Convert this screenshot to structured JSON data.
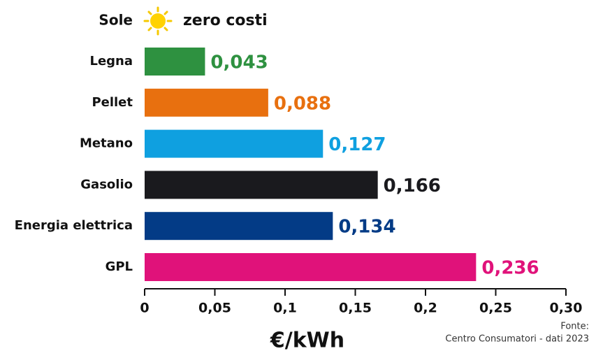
{
  "chart_data": {
    "type": "hbar",
    "highlight": {
      "category": "Sole",
      "label": "zero costi"
    },
    "categories": [
      "Legna",
      "Pellet",
      "Metano",
      "Gasolio",
      "Energia elettrica",
      "GPL"
    ],
    "values": [
      0.043,
      0.088,
      0.127,
      0.166,
      0.134,
      0.236
    ],
    "value_labels": [
      "0,043",
      "0,088",
      "0,127",
      "0,166",
      "0,134",
      "0,236"
    ],
    "colors": [
      "#2e9140",
      "#e8700f",
      "#0fa0e0",
      "#1a1a1e",
      "#033b86",
      "#e0127a"
    ],
    "xlim": [
      0,
      0.3
    ],
    "xticks": [
      0,
      {
        "value": 0.05,
        "label": "0,05"
      },
      {
        "value": 0.1,
        "label": "0,1"
      },
      {
        "value": 0.15,
        "label": "0,15"
      },
      {
        "value": 0.2,
        "label": "0,2"
      },
      {
        "value": 0.25,
        "label": "0,25"
      },
      {
        "value": 0.3,
        "label": "0,30"
      }
    ],
    "x_label": "€/kWh",
    "source": [
      "Fonte:",
      "Centro Consumatori - dati 2023"
    ]
  }
}
